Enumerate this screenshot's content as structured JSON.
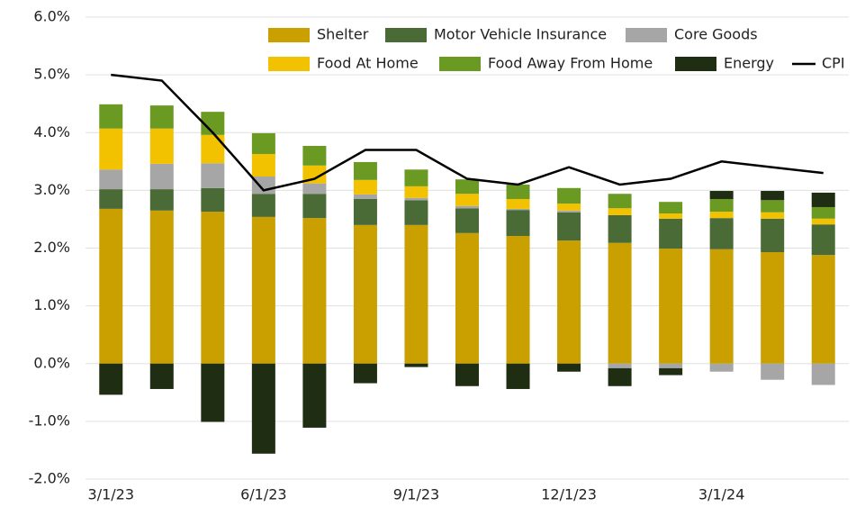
{
  "chart_data": {
    "type": "stacked_bar_line",
    "categories": [
      "3/1/23",
      null,
      null,
      "6/1/23",
      null,
      null,
      "9/1/23",
      null,
      null,
      "12/1/23",
      null,
      null,
      "3/1/24",
      null,
      null
    ],
    "series": [
      {
        "name": "Shelter",
        "color": "#c9a000",
        "values": [
          2.68,
          2.65,
          2.63,
          2.54,
          2.52,
          2.4,
          2.4,
          2.26,
          2.21,
          2.13,
          2.09,
          1.99,
          1.98,
          1.93,
          1.88
        ]
      },
      {
        "name": "Motor Vehicle Insurance",
        "color": "#4a6b35",
        "values": [
          0.34,
          0.37,
          0.41,
          0.4,
          0.42,
          0.45,
          0.43,
          0.43,
          0.45,
          0.49,
          0.48,
          0.52,
          0.54,
          0.58,
          0.53
        ]
      },
      {
        "name": "Core Goods",
        "color": "#a6a6a6",
        "values": [
          0.34,
          0.44,
          0.43,
          0.3,
          0.18,
          0.08,
          0.04,
          0.04,
          0.02,
          0.03,
          -0.08,
          -0.08,
          -0.14,
          -0.28,
          -0.37
        ]
      },
      {
        "name": "Food At Home",
        "color": "#f2c200",
        "values": [
          0.71,
          0.61,
          0.49,
          0.39,
          0.31,
          0.25,
          0.2,
          0.21,
          0.17,
          0.12,
          0.12,
          0.09,
          0.11,
          0.11,
          0.1
        ]
      },
      {
        "name": "Food Away From Home",
        "color": "#6b9a23",
        "values": [
          0.42,
          0.4,
          0.4,
          0.36,
          0.34,
          0.31,
          0.29,
          0.25,
          0.25,
          0.27,
          0.25,
          0.2,
          0.22,
          0.21,
          0.2
        ]
      },
      {
        "name": "Energy",
        "color": "#1f2d12",
        "values": [
          -0.54,
          -0.44,
          -1.01,
          -1.56,
          -1.11,
          -0.34,
          -0.06,
          -0.39,
          -0.44,
          -0.14,
          -0.31,
          -0.12,
          0.14,
          0.16,
          0.25
        ]
      },
      {
        "name": "CPI",
        "color": "#000000",
        "kind": "line",
        "values": [
          5.0,
          4.9,
          4.0,
          3.0,
          3.2,
          3.7,
          3.7,
          3.2,
          3.1,
          3.4,
          3.1,
          3.2,
          3.5,
          3.4,
          3.3
        ]
      }
    ],
    "ylim": [
      -2,
      6
    ],
    "yticks": [
      {
        "value": -2,
        "label": "-2.0%"
      },
      {
        "value": -1,
        "label": "-1.0%"
      },
      {
        "value": 0,
        "label": "0.0%"
      },
      {
        "value": 1,
        "label": "1.0%"
      },
      {
        "value": 2,
        "label": "2.0%"
      },
      {
        "value": 3,
        "label": "3.0%"
      },
      {
        "value": 4,
        "label": "4.0%"
      },
      {
        "value": 5,
        "label": "5.0%"
      },
      {
        "value": 6,
        "label": "6.0%"
      }
    ],
    "grid": true
  }
}
